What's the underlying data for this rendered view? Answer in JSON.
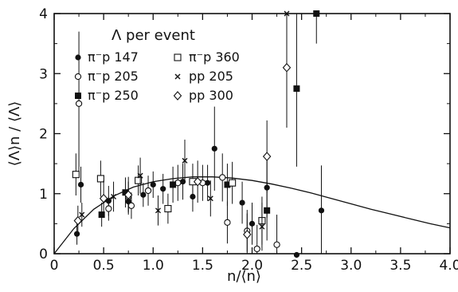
{
  "chart_data": {
    "type": "scatter",
    "title": "",
    "xlabel": "n/⟨n⟩",
    "ylabel": "⟨Λ⟩n / ⟨Λ⟩",
    "xlim": [
      0,
      4.0
    ],
    "ylim": [
      0,
      4
    ],
    "x_ticks": [
      "0",
      "0.5",
      "1.0",
      "1.5",
      "2.0",
      "2.5",
      "3.0",
      "3.5",
      "4.0"
    ],
    "y_ticks": [
      "0",
      "1",
      "2",
      "3",
      "4"
    ],
    "legend": {
      "title": "Λ  per event",
      "placement": "top-left"
    },
    "series": [
      {
        "name": "π⁻p 147",
        "marker": "filled-circle",
        "points": [
          {
            "x": 0.23,
            "y": 0.33,
            "err": 0.18
          },
          {
            "x": 0.27,
            "y": 1.15,
            "err": 0.3
          },
          {
            "x": 0.55,
            "y": 0.88,
            "err": 0.25
          },
          {
            "x": 0.75,
            "y": 0.87,
            "err": 0.22
          },
          {
            "x": 0.9,
            "y": 0.98,
            "err": 0.2
          },
          {
            "x": 1.0,
            "y": 1.15,
            "err": 0.22
          },
          {
            "x": 1.1,
            "y": 1.08,
            "err": 0.25
          },
          {
            "x": 1.3,
            "y": 1.2,
            "err": 0.3
          },
          {
            "x": 1.4,
            "y": 0.95,
            "err": 0.25
          },
          {
            "x": 1.55,
            "y": 1.18,
            "err": 0.3
          },
          {
            "x": 1.62,
            "y": 1.75,
            "err": 0.7
          },
          {
            "x": 1.9,
            "y": 0.85,
            "err": 0.35
          },
          {
            "x": 2.0,
            "y": 0.5,
            "err": 0.35
          },
          {
            "x": 2.15,
            "y": 1.1,
            "err": 0.5
          },
          {
            "x": 2.45,
            "y": -0.02,
            "err": 0
          },
          {
            "x": 2.7,
            "y": 0.72,
            "err": 0.75
          }
        ]
      },
      {
        "name": "π⁻p 205",
        "marker": "open-circle",
        "points": [
          {
            "x": 0.25,
            "y": 2.5,
            "err": 1.2
          },
          {
            "x": 0.55,
            "y": 0.75,
            "err": 0.2
          },
          {
            "x": 0.75,
            "y": 0.95,
            "err": 0.25
          },
          {
            "x": 0.78,
            "y": 0.8,
            "err": 0.22
          },
          {
            "x": 0.95,
            "y": 1.05,
            "err": 0.25
          },
          {
            "x": 1.25,
            "y": 1.18,
            "err": 0.3
          },
          {
            "x": 1.5,
            "y": 1.18,
            "err": 0.3
          },
          {
            "x": 1.7,
            "y": 1.27,
            "err": 0.4
          },
          {
            "x": 1.75,
            "y": 0.52,
            "err": 0.35
          },
          {
            "x": 1.95,
            "y": 0.38,
            "err": 0.35
          },
          {
            "x": 2.05,
            "y": 0.08,
            "err": 0.4
          },
          {
            "x": 2.25,
            "y": 0.15,
            "err": 0.5
          }
        ]
      },
      {
        "name": "π⁻p 250",
        "marker": "filled-square",
        "points": [
          {
            "x": 0.48,
            "y": 0.65,
            "err": 0.2
          },
          {
            "x": 0.72,
            "y": 1.02,
            "err": 0.25
          },
          {
            "x": 1.2,
            "y": 1.15,
            "err": 0.3
          },
          {
            "x": 1.75,
            "y": 1.15,
            "err": 0.35
          },
          {
            "x": 2.15,
            "y": 0.72,
            "err": 0.5
          },
          {
            "x": 2.45,
            "y": 2.75,
            "err": 1.3
          },
          {
            "x": 2.65,
            "y": 4.0,
            "err": 0.5
          }
        ]
      },
      {
        "name": "π⁻p 360",
        "marker": "open-square",
        "points": [
          {
            "x": 0.22,
            "y": 1.32,
            "err": 0.35
          },
          {
            "x": 0.47,
            "y": 1.25,
            "err": 0.3
          },
          {
            "x": 0.85,
            "y": 1.22,
            "err": 0.25
          },
          {
            "x": 1.15,
            "y": 0.75,
            "err": 0.25
          },
          {
            "x": 1.4,
            "y": 1.2,
            "err": 0.3
          },
          {
            "x": 1.8,
            "y": 1.18,
            "err": 0.35
          },
          {
            "x": 2.1,
            "y": 0.55,
            "err": 0.4
          }
        ]
      },
      {
        "name": "pp 205",
        "marker": "cross",
        "points": [
          {
            "x": 0.28,
            "y": 0.65,
            "err": 0.2
          },
          {
            "x": 0.6,
            "y": 0.95,
            "err": 0.25
          },
          {
            "x": 0.87,
            "y": 1.3,
            "err": 0.3
          },
          {
            "x": 1.05,
            "y": 0.72,
            "err": 0.25
          },
          {
            "x": 1.32,
            "y": 1.55,
            "err": 0.35
          },
          {
            "x": 1.58,
            "y": 0.92,
            "err": 0.3
          },
          {
            "x": 2.1,
            "y": 0.45,
            "err": 0.4
          },
          {
            "x": 2.35,
            "y": 4.0,
            "err": 0.5
          }
        ]
      },
      {
        "name": "pp 300",
        "marker": "open-diamond",
        "points": [
          {
            "x": 0.24,
            "y": 0.55,
            "err": 0.25
          },
          {
            "x": 0.5,
            "y": 0.92,
            "err": 0.3
          },
          {
            "x": 0.75,
            "y": 0.98,
            "err": 0.3
          },
          {
            "x": 1.45,
            "y": 1.2,
            "err": 0.35
          },
          {
            "x": 1.95,
            "y": 0.32,
            "err": 0.35
          },
          {
            "x": 2.15,
            "y": 1.62,
            "err": 0.6
          },
          {
            "x": 2.35,
            "y": 3.1,
            "err": 1.0
          }
        ]
      }
    ],
    "curve": {
      "points": [
        [
          0,
          0
        ],
        [
          0.2,
          0.42
        ],
        [
          0.4,
          0.74
        ],
        [
          0.6,
          0.96
        ],
        [
          0.8,
          1.11
        ],
        [
          1.0,
          1.2
        ],
        [
          1.2,
          1.25
        ],
        [
          1.4,
          1.28
        ],
        [
          1.6,
          1.28
        ],
        [
          1.8,
          1.26
        ],
        [
          2.0,
          1.22
        ],
        [
          2.2,
          1.16
        ],
        [
          2.4,
          1.09
        ],
        [
          2.6,
          1.01
        ],
        [
          2.8,
          0.92
        ],
        [
          3.0,
          0.83
        ],
        [
          3.2,
          0.74
        ],
        [
          3.4,
          0.66
        ],
        [
          3.6,
          0.58
        ],
        [
          3.8,
          0.5
        ],
        [
          4.0,
          0.43
        ]
      ]
    }
  }
}
